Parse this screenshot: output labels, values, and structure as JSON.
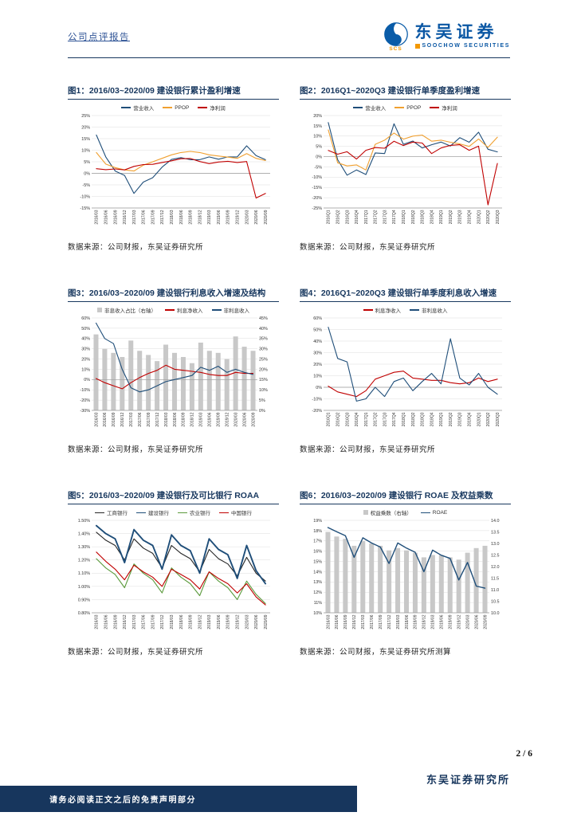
{
  "page": {
    "report_type": "公司点评报告",
    "page_number": "2 / 6"
  },
  "brand": {
    "logo_text": "东吴证券",
    "logo_subtext": "SOOCHOW SECURITIES",
    "logo_mark": "SCS"
  },
  "footer": {
    "disclaimer": "请务必阅读正文之后的免责声明部分",
    "institute": "东吴证券研究所"
  },
  "colors": {
    "navy": "#17375E",
    "blue": "#1F4E79",
    "orange": "#F0A030",
    "red": "#C00000",
    "green": "#5B9A3C",
    "black": "#262626",
    "gray_bar": "#C8C8C8"
  },
  "chart_data": [
    {
      "type": "line",
      "title": "图1：2016/03~2020/09 建设银行累计盈利增速",
      "source": "数据来源：公司财报，东吴证券研究所",
      "ylim": [
        -15,
        25
      ],
      "ytick": 5,
      "yfmt": "pct",
      "categories": [
        "2016/03",
        "2016/06",
        "2016/09",
        "2016/12",
        "2017/03",
        "2017/06",
        "2017/09",
        "2017/12",
        "2018/03",
        "2018/06",
        "2018/09",
        "2018/12",
        "2019/03",
        "2019/06",
        "2019/09",
        "2019/12",
        "2020/03",
        "2020/06",
        "2020/09"
      ],
      "series": [
        {
          "name": "营业收入",
          "type": "line",
          "color": "#1F4E79",
          "values": [
            16.6,
            7.1,
            1.0,
            -0.9,
            -8.7,
            -3.8,
            -1.9,
            2.7,
            6.0,
            6.8,
            5.9,
            5.9,
            7.1,
            6.1,
            7.1,
            7.1,
            11.9,
            7.7,
            5.9
          ]
        },
        {
          "name": "PPOP",
          "type": "line",
          "color": "#F0A030",
          "values": [
            9.0,
            4.0,
            2.5,
            1.5,
            1.0,
            3.5,
            5.0,
            6.5,
            8.0,
            9.0,
            9.5,
            9.0,
            8.0,
            7.5,
            7.0,
            6.5,
            8.5,
            6.5,
            5.5
          ]
        },
        {
          "name": "净利润",
          "type": "line",
          "color": "#C00000",
          "values": [
            2.0,
            1.6,
            1.9,
            1.5,
            3.0,
            3.8,
            3.9,
            4.7,
            5.4,
            6.3,
            6.4,
            5.1,
            4.2,
            4.9,
            5.2,
            4.7,
            5.1,
            -10.7,
            -8.7
          ]
        }
      ]
    },
    {
      "type": "line",
      "title": "图2：2016Q1~2020Q3 建设银行单季度盈利增速",
      "source": "数据来源：公司财报，东吴证券研究所",
      "ylim": [
        -25,
        20
      ],
      "ytick": 5,
      "yfmt": "pct",
      "categories": [
        "2016Q1",
        "2016Q2",
        "2016Q3",
        "2016Q4",
        "2017Q1",
        "2017Q2",
        "2017Q3",
        "2017Q4",
        "2018Q1",
        "2018Q2",
        "2018Q3",
        "2018Q4",
        "2019Q1",
        "2019Q2",
        "2019Q3",
        "2019Q4",
        "2020Q1",
        "2020Q2",
        "2020Q3"
      ],
      "series": [
        {
          "name": "营业收入",
          "type": "line",
          "color": "#1F4E79",
          "values": [
            16.6,
            -1.5,
            -9.0,
            -6.5,
            -8.7,
            1.8,
            1.5,
            16.0,
            6.0,
            7.6,
            4.2,
            5.8,
            7.1,
            5.2,
            9.2,
            7.0,
            11.9,
            3.6,
            2.3
          ]
        },
        {
          "name": "PPOP",
          "type": "line",
          "color": "#F0A030",
          "values": [
            13.0,
            -3.0,
            -4.5,
            -4.0,
            -6.5,
            6.0,
            8.0,
            11.5,
            8.5,
            10.0,
            10.5,
            7.5,
            8.0,
            7.0,
            6.2,
            5.0,
            8.6,
            4.5,
            9.5
          ]
        },
        {
          "name": "净利润",
          "type": "line",
          "color": "#C00000",
          "values": [
            3.0,
            1.2,
            2.4,
            -1.2,
            3.1,
            4.4,
            4.1,
            7.5,
            5.4,
            7.1,
            6.6,
            1.5,
            4.2,
            5.5,
            5.8,
            3.1,
            5.1,
            -23.5,
            -3.3
          ]
        }
      ]
    },
    {
      "type": "bar+line",
      "title": "图3：2016/03~2020/09 建设银行利息收入增速及结构",
      "source": "数据来源：公司财报，东吴证券研究所",
      "ylim": [
        -30,
        60
      ],
      "ytick": 10,
      "yfmt": "pct",
      "y2lim": [
        0,
        45
      ],
      "y2tick": 5,
      "y2fmt": "pct",
      "categories": [
        "2016/03",
        "2016/06",
        "2016/09",
        "2016/12",
        "2017/03",
        "2017/06",
        "2017/09",
        "2017/12",
        "2018/03",
        "2018/06",
        "2018/09",
        "2018/12",
        "2019/03",
        "2019/06",
        "2019/09",
        "2019/12",
        "2020/03",
        "2020/06",
        "2020/09"
      ],
      "series": [
        {
          "name": "非息收入占比（右轴）",
          "type": "bar",
          "axis": "right",
          "color": "#C8C8C8",
          "values": [
            37,
            30,
            28,
            26,
            34,
            29,
            27,
            24,
            32,
            28,
            26,
            23,
            33,
            29,
            28,
            25,
            36,
            31,
            29
          ]
        },
        {
          "name": "利息净收入",
          "type": "line",
          "color": "#C00000",
          "values": [
            1,
            -3,
            -6,
            -9,
            -3,
            2,
            6,
            9,
            14,
            10,
            9,
            8,
            7,
            5,
            4,
            4,
            7,
            6,
            6
          ]
        },
        {
          "name": "非利息收入",
          "type": "line",
          "color": "#1F4E79",
          "values": [
            55,
            40,
            35,
            10,
            -8,
            -12,
            -10,
            -6,
            -2,
            0,
            2,
            4,
            12,
            9,
            13,
            7,
            10,
            7,
            5
          ]
        }
      ]
    },
    {
      "type": "line",
      "title": "图4：2016Q1~2020Q3 建设银行单季度利息收入增速",
      "source": "数据来源：公司财报，东吴证券研究所",
      "ylim": [
        -20,
        60
      ],
      "ytick": 10,
      "yfmt": "pct",
      "categories": [
        "2016Q1",
        "2016Q2",
        "2016Q3",
        "2016Q4",
        "2017Q1",
        "2017Q2",
        "2017Q3",
        "2017Q4",
        "2018Q1",
        "2018Q2",
        "2018Q3",
        "2018Q4",
        "2019Q1",
        "2019Q2",
        "2019Q3",
        "2019Q4",
        "2020Q1",
        "2020Q2",
        "2020Q3"
      ],
      "series": [
        {
          "name": "利息净收入",
          "type": "line",
          "color": "#C00000",
          "values": [
            1,
            -4,
            -6,
            -8,
            -3,
            7,
            10,
            13,
            14,
            8,
            7,
            6,
            6,
            4,
            3,
            4,
            8,
            5,
            7
          ]
        },
        {
          "name": "非利息收入",
          "type": "line",
          "color": "#1F4E79",
          "values": [
            52,
            25,
            22,
            -12,
            -10,
            0,
            -8,
            5,
            8,
            -3,
            5,
            12,
            3,
            42,
            8,
            2,
            12,
            0,
            -6
          ]
        }
      ]
    },
    {
      "type": "line",
      "title": "图5：2016/03~2020/09 建设银行及可比银行 ROAA",
      "source": "数据来源：公司财报，东吴证券研究所",
      "ylim": [
        0.8,
        1.5
      ],
      "ytick": 0.1,
      "yfmt": "pct2",
      "categories": [
        "2016/03",
        "2016/06",
        "2016/09",
        "2016/12",
        "2017/03",
        "2017/06",
        "2017/09",
        "2017/12",
        "2018/03",
        "2018/06",
        "2018/09",
        "2018/12",
        "2019/03",
        "2019/06",
        "2019/09",
        "2019/12",
        "2020/03",
        "2020/06",
        "2020/09"
      ],
      "series": [
        {
          "name": "工商银行",
          "type": "line",
          "color": "#262626",
          "values": [
            1.41,
            1.35,
            1.31,
            1.2,
            1.36,
            1.29,
            1.25,
            1.14,
            1.31,
            1.25,
            1.21,
            1.11,
            1.28,
            1.21,
            1.17,
            1.08,
            1.22,
            1.1,
            1.04
          ]
        },
        {
          "name": "建设银行",
          "type": "line",
          "color": "#1F4E79",
          "w": 1.9,
          "values": [
            1.46,
            1.4,
            1.36,
            1.18,
            1.43,
            1.35,
            1.31,
            1.13,
            1.39,
            1.31,
            1.27,
            1.1,
            1.36,
            1.28,
            1.24,
            1.06,
            1.31,
            1.12,
            1.02
          ]
        },
        {
          "name": "农业银行",
          "type": "line",
          "color": "#5B9A3C",
          "values": [
            1.21,
            1.14,
            1.09,
            0.99,
            1.17,
            1.1,
            1.05,
            0.95,
            1.14,
            1.07,
            1.02,
            0.93,
            1.11,
            1.04,
            0.99,
            0.9,
            1.04,
            0.94,
            0.87
          ]
        },
        {
          "name": "中国银行",
          "type": "line",
          "color": "#C00000",
          "values": [
            1.26,
            1.19,
            1.13,
            1.05,
            1.16,
            1.11,
            1.07,
            1.0,
            1.13,
            1.09,
            1.05,
            0.98,
            1.11,
            1.06,
            1.02,
            0.95,
            1.02,
            0.92,
            0.86
          ]
        }
      ]
    },
    {
      "type": "bar+line",
      "title": "图6：2016/03~2020/09 建设银行 ROAE 及权益乘数",
      "source": "数据来源：公司财报，东吴证券研究所测算",
      "ylim": [
        10,
        19
      ],
      "ytick": 1,
      "yfmt": "pct",
      "y2lim": [
        10,
        14
      ],
      "y2tick": 0.5,
      "y2fmt": "num1",
      "categories": [
        "2016/03",
        "2016/06",
        "2016/09",
        "2016/12",
        "2017/03",
        "2017/06",
        "2017/09",
        "2017/12",
        "2018/03",
        "2018/06",
        "2018/09",
        "2018/12",
        "2019/03",
        "2019/06",
        "2019/09",
        "2019/12",
        "2020/03",
        "2020/06",
        "2020/09"
      ],
      "series": [
        {
          "name": "权益乘数（右轴）",
          "type": "bar",
          "axis": "right",
          "color": "#C8C8C8",
          "values": [
            13.5,
            13.3,
            13.2,
            12.9,
            13.1,
            13.0,
            12.9,
            12.7,
            12.8,
            12.7,
            12.6,
            12.4,
            12.5,
            12.5,
            12.4,
            12.3,
            12.6,
            12.8,
            12.9
          ]
        },
        {
          "name": "ROAE",
          "type": "line",
          "color": "#1F4E79",
          "w": 1.4,
          "values": [
            18.3,
            17.9,
            17.5,
            15.4,
            17.3,
            16.8,
            16.4,
            14.8,
            16.8,
            16.3,
            15.9,
            14.0,
            16.1,
            15.6,
            15.3,
            13.2,
            14.9,
            12.6,
            12.4
          ]
        }
      ]
    }
  ]
}
